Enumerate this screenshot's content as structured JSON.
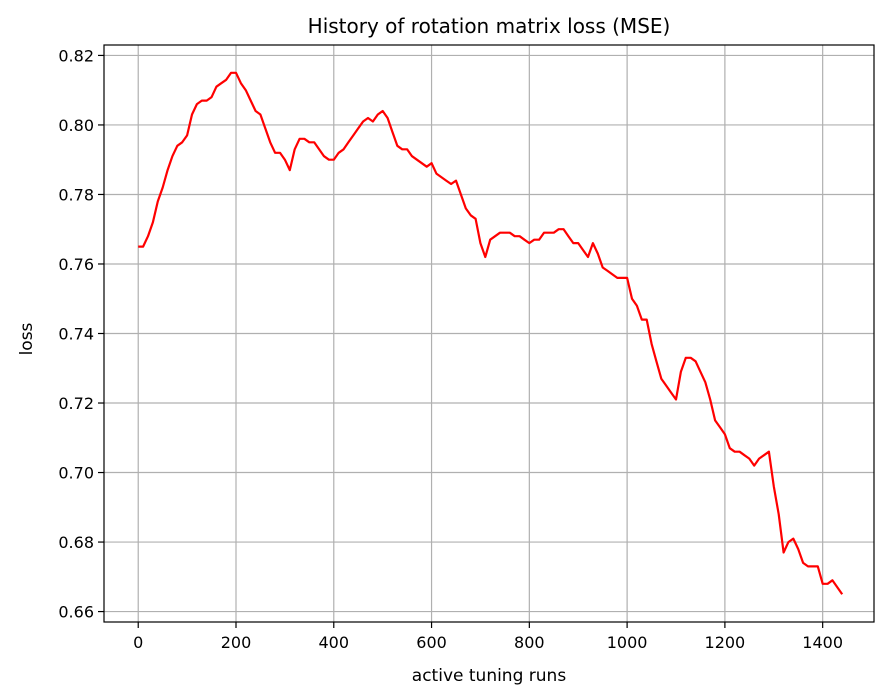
{
  "chart_data": {
    "type": "line",
    "title": "History of rotation matrix loss (MSE)",
    "xlabel": "active tuning runs",
    "ylabel": "loss",
    "xlim": [
      -70,
      1505
    ],
    "ylim": [
      0.657,
      0.823
    ],
    "xticks": [
      0,
      200,
      400,
      600,
      800,
      1000,
      1200,
      1400
    ],
    "yticks": [
      0.66,
      0.68,
      0.7,
      0.72,
      0.74,
      0.76,
      0.78,
      0.8,
      0.82
    ],
    "ytick_labels": [
      "0.66",
      "0.68",
      "0.70",
      "0.72",
      "0.74",
      "0.76",
      "0.78",
      "0.80",
      "0.82"
    ],
    "grid": true,
    "series": [
      {
        "color": "#ff0000",
        "x": [
          0,
          10,
          20,
          30,
          40,
          50,
          60,
          70,
          80,
          90,
          100,
          110,
          120,
          130,
          140,
          150,
          160,
          170,
          180,
          190,
          200,
          210,
          220,
          230,
          240,
          250,
          260,
          270,
          280,
          290,
          300,
          310,
          320,
          330,
          340,
          350,
          360,
          370,
          380,
          390,
          400,
          410,
          420,
          430,
          440,
          450,
          460,
          470,
          480,
          490,
          500,
          510,
          520,
          530,
          540,
          550,
          560,
          570,
          580,
          590,
          600,
          610,
          620,
          630,
          640,
          650,
          660,
          670,
          680,
          690,
          700,
          710,
          720,
          730,
          740,
          750,
          760,
          770,
          780,
          790,
          800,
          810,
          820,
          830,
          840,
          850,
          860,
          870,
          880,
          890,
          900,
          910,
          920,
          930,
          940,
          950,
          960,
          970,
          980,
          990,
          1000,
          1010,
          1020,
          1030,
          1040,
          1050,
          1060,
          1070,
          1080,
          1090,
          1100,
          1110,
          1120,
          1130,
          1140,
          1150,
          1160,
          1170,
          1180,
          1190,
          1200,
          1210,
          1220,
          1230,
          1240,
          1250,
          1260,
          1270,
          1280,
          1290,
          1300,
          1310,
          1320,
          1330,
          1340,
          1350,
          1360,
          1370,
          1380,
          1390,
          1400,
          1410,
          1420,
          1430,
          1440
        ],
        "y": [
          0.765,
          0.765,
          0.768,
          0.772,
          0.778,
          0.782,
          0.787,
          0.791,
          0.794,
          0.795,
          0.797,
          0.803,
          0.806,
          0.807,
          0.807,
          0.808,
          0.811,
          0.812,
          0.813,
          0.815,
          0.815,
          0.812,
          0.81,
          0.807,
          0.804,
          0.803,
          0.799,
          0.795,
          0.792,
          0.792,
          0.79,
          0.787,
          0.793,
          0.796,
          0.796,
          0.795,
          0.795,
          0.793,
          0.791,
          0.79,
          0.79,
          0.792,
          0.793,
          0.795,
          0.797,
          0.799,
          0.801,
          0.802,
          0.801,
          0.803,
          0.804,
          0.802,
          0.798,
          0.794,
          0.793,
          0.793,
          0.791,
          0.79,
          0.789,
          0.788,
          0.789,
          0.786,
          0.785,
          0.784,
          0.783,
          0.784,
          0.78,
          0.776,
          0.774,
          0.773,
          0.766,
          0.762,
          0.767,
          0.768,
          0.769,
          0.769,
          0.769,
          0.768,
          0.768,
          0.767,
          0.766,
          0.767,
          0.767,
          0.769,
          0.769,
          0.769,
          0.77,
          0.77,
          0.768,
          0.766,
          0.766,
          0.764,
          0.762,
          0.766,
          0.763,
          0.759,
          0.758,
          0.757,
          0.756,
          0.756,
          0.756,
          0.75,
          0.748,
          0.744,
          0.744,
          0.737,
          0.732,
          0.727,
          0.725,
          0.723,
          0.721,
          0.729,
          0.733,
          0.733,
          0.732,
          0.729,
          0.726,
          0.721,
          0.715,
          0.713,
          0.711,
          0.707,
          0.706,
          0.706,
          0.705,
          0.704,
          0.702,
          0.704,
          0.705,
          0.706,
          0.696,
          0.688,
          0.677,
          0.68,
          0.681,
          0.678,
          0.674,
          0.673,
          0.673,
          0.673,
          0.668,
          0.668,
          0.669,
          0.667,
          0.665
        ]
      }
    ]
  }
}
